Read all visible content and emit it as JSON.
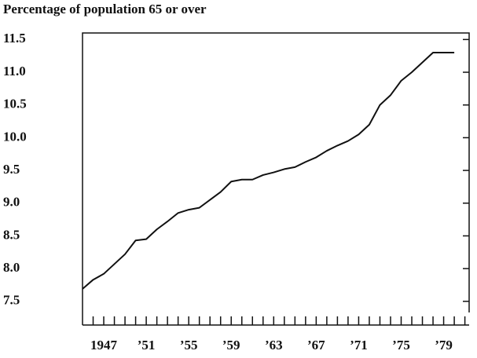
{
  "chart_data": {
    "type": "line",
    "title": "Percentage of population 65 or over",
    "x": [
      1945,
      1946,
      1947,
      1948,
      1949,
      1950,
      1951,
      1952,
      1953,
      1954,
      1955,
      1956,
      1957,
      1958,
      1959,
      1960,
      1961,
      1962,
      1963,
      1964,
      1965,
      1966,
      1967,
      1968,
      1969,
      1970,
      1971,
      1972,
      1973,
      1974,
      1975,
      1976,
      1977,
      1978,
      1979,
      1980
    ],
    "values": [
      7.69,
      7.83,
      7.92,
      8.07,
      8.22,
      8.43,
      8.45,
      8.6,
      8.72,
      8.85,
      8.9,
      8.93,
      9.05,
      9.17,
      9.33,
      9.36,
      9.36,
      9.43,
      9.47,
      9.52,
      9.55,
      9.63,
      9.7,
      9.8,
      9.88,
      9.95,
      10.05,
      10.2,
      10.5,
      10.65,
      10.87,
      11.0,
      11.15,
      11.3,
      11.3,
      11.3
    ],
    "color": "#111111",
    "xlim": [
      1945,
      1981.4
    ],
    "xticks": [
      {
        "value": 1947,
        "label": "1947"
      },
      {
        "value": 1951,
        "label": "’51"
      },
      {
        "value": 1955,
        "label": "’55"
      },
      {
        "value": 1959,
        "label": "’59"
      },
      {
        "value": 1963,
        "label": "’63"
      },
      {
        "value": 1967,
        "label": "’67"
      },
      {
        "value": 1971,
        "label": "’71"
      },
      {
        "value": 1975,
        "label": "’75"
      },
      {
        "value": 1979,
        "label": "’79"
      }
    ],
    "xminorticks": [
      1946,
      1947,
      1948,
      1949,
      1950,
      1951,
      1952,
      1953,
      1954,
      1955,
      1956,
      1957,
      1958,
      1959,
      1960,
      1961,
      1962,
      1963,
      1964,
      1965,
      1966,
      1967,
      1968,
      1969,
      1970,
      1971,
      1972,
      1973,
      1974,
      1975,
      1976,
      1977,
      1978,
      1979,
      1980,
      1981
    ],
    "ylim": [
      7.33,
      11.6
    ],
    "yticks": [
      7.5,
      {
        "value": 8,
        "label": "8.0"
      },
      8.5,
      {
        "value": 9,
        "label": "9.0"
      },
      9.5,
      {
        "value": 10,
        "label": "10.0"
      },
      10.5,
      {
        "value": 11,
        "label": "11.0"
      },
      11.5
    ]
  }
}
